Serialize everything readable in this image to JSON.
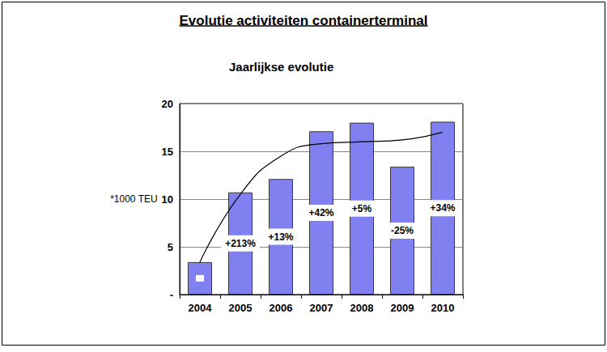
{
  "chart_data": {
    "type": "bar",
    "title": "Evolutie activiteiten containerterminal",
    "subtitle": "Jaarlijkse evolutie",
    "y_label": "*1000 TEU",
    "categories": [
      "2004",
      "2005",
      "2006",
      "2007",
      "2008",
      "2009",
      "2010"
    ],
    "series": [
      {
        "type": "bar",
        "color": "#8080f0",
        "values": [
          3.4,
          10.7,
          12.1,
          17.1,
          18.0,
          13.4,
          18.1
        ],
        "annotations": [
          null,
          "+213%",
          "+13%",
          "+42%",
          "+5%",
          "-25%",
          "+34%"
        ]
      },
      {
        "type": "line",
        "color": "#000000",
        "line_style": "solid",
        "marker": "none",
        "values": [
          3.4,
          10.5,
          14.5,
          15.8,
          16.0,
          16.2,
          17.0
        ]
      }
    ],
    "ylim": [
      0,
      20
    ],
    "yticks": [
      {
        "value": 0,
        "label": "-"
      },
      5,
      10,
      15,
      20
    ],
    "grid": true
  }
}
